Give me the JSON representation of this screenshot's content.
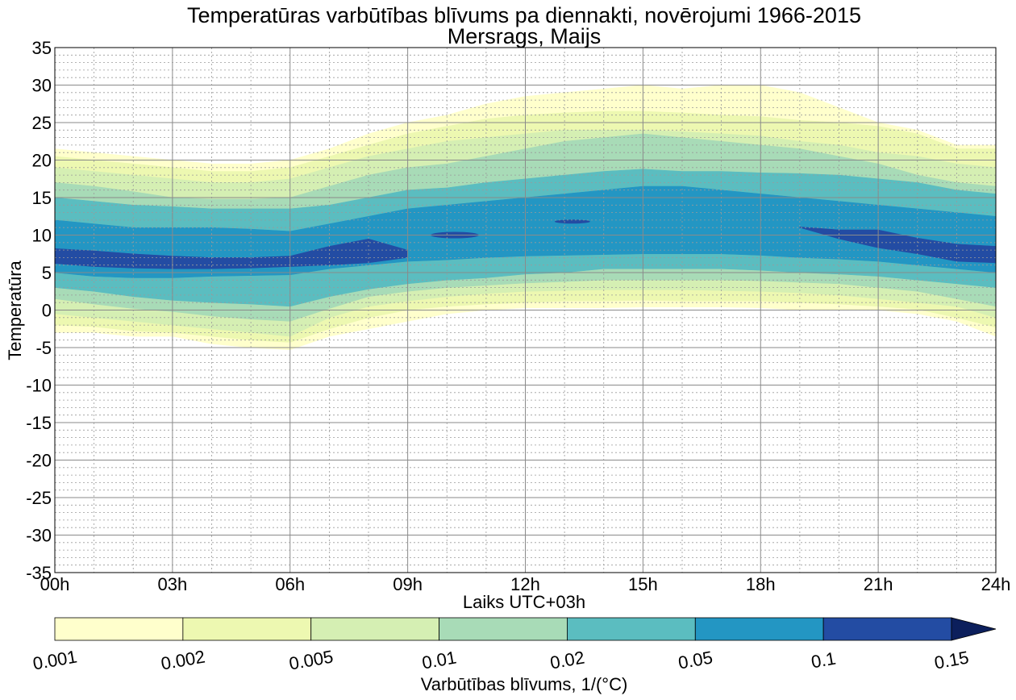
{
  "chart_data": {
    "type": "contour",
    "title": "Temperatūras varbūtības blīvums pa diennakti, novērojumi 1966-2015",
    "subtitle": "Mersrags, Maijs",
    "xlabel": "Laiks UTC+03h",
    "ylabel": "Temperatūra",
    "xlim": [
      0,
      24
    ],
    "ylim": [
      -35,
      35
    ],
    "x_ticks": [
      0,
      3,
      6,
      9,
      12,
      15,
      18,
      21,
      24
    ],
    "x_tick_labels": [
      "00h",
      "03h",
      "06h",
      "09h",
      "12h",
      "15h",
      "18h",
      "21h",
      "24h"
    ],
    "y_ticks": [
      -35,
      -30,
      -25,
      -20,
      -15,
      -10,
      -5,
      0,
      5,
      10,
      15,
      20,
      25,
      30,
      35
    ],
    "y_tick_labels": [
      "-35",
      "-30",
      "-25",
      "-20",
      "-15",
      "-10",
      "-5",
      "0",
      "5",
      "10",
      "15",
      "20",
      "25",
      "30",
      "35"
    ],
    "grid": true,
    "colorbar": {
      "label": "Varbūtības blīvums, 1/(°C)",
      "levels": [
        0.001,
        0.002,
        0.005,
        0.01,
        0.02,
        0.05,
        0.1,
        0.15
      ],
      "level_labels": [
        "0.001",
        "0.002",
        "0.005",
        "0.01",
        "0.02",
        "0.05",
        "0.1",
        "0.15"
      ],
      "colors": [
        "#ffffcc",
        "#edf8b1",
        "#d5efb3",
        "#a8dbb7",
        "#5bbdc0",
        "#2396c3",
        "#234ca3",
        "#0c1f5c"
      ],
      "extend": "max",
      "placement": "bottom"
    },
    "hours": [
      0,
      1,
      2,
      3,
      4,
      5,
      6,
      7,
      8,
      9,
      10,
      11,
      12,
      13,
      14,
      15,
      16,
      17,
      18,
      19,
      20,
      21,
      22,
      23,
      24
    ],
    "contour_bands": [
      {
        "level": 0.001,
        "upper": [
          21.5,
          21,
          20.5,
          20,
          19.5,
          19.5,
          20,
          21.5,
          23.5,
          25,
          26,
          27.5,
          28.5,
          29,
          29.5,
          30,
          29.5,
          30,
          30,
          29,
          27,
          25,
          24,
          22,
          22
        ],
        "lower": [
          -3,
          -3,
          -3.5,
          -3.5,
          -4.5,
          -5,
          -5.3,
          -3.5,
          -2.5,
          -1.5,
          -0.5,
          0,
          0.3,
          0.3,
          0.3,
          0.4,
          0.4,
          0.4,
          0.3,
          0,
          0,
          0,
          -0.5,
          -1.5,
          -3.5
        ]
      },
      {
        "level": 0.002,
        "upper": [
          20.5,
          20,
          19.5,
          19,
          18.5,
          18.5,
          19,
          20.5,
          22,
          23.5,
          24.5,
          25.5,
          26,
          26.3,
          26.5,
          26.5,
          26.3,
          26,
          25.8,
          25.3,
          25,
          24.5,
          23.5,
          21.5,
          21.5
        ],
        "lower": [
          -2,
          -2.2,
          -2.8,
          -3,
          -3.5,
          -4,
          -4.3,
          -2.5,
          -1,
          0,
          0.5,
          0.8,
          1,
          1.2,
          1.2,
          1.3,
          1.2,
          1.2,
          1.2,
          1,
          0.8,
          0.5,
          0.1,
          -1,
          -2.3
        ]
      },
      {
        "level": 0.005,
        "upper": [
          19,
          18.5,
          18,
          17.5,
          17,
          17,
          17.5,
          19,
          20.5,
          21.5,
          22.5,
          23,
          23.5,
          24,
          24,
          24,
          23.8,
          23.5,
          23.2,
          22.5,
          22,
          21,
          20.5,
          19.5,
          19
        ],
        "lower": [
          -0.5,
          -1,
          -1.5,
          -2,
          -2.5,
          -3,
          -3.5,
          -1,
          0.5,
          1.2,
          1.8,
          2.2,
          2.5,
          2.6,
          2.7,
          2.7,
          2.7,
          2.6,
          2.5,
          2.3,
          2,
          1.5,
          1,
          0.5,
          -1
        ]
      },
      {
        "level": 0.01,
        "upper": [
          17,
          16.5,
          15.8,
          15,
          14.8,
          14.8,
          15,
          16.5,
          18,
          19,
          19.5,
          20.5,
          21.5,
          22.5,
          23,
          23.5,
          23,
          22.5,
          22,
          21.5,
          20.5,
          19.5,
          18,
          17,
          16.5
        ],
        "lower": [
          1.5,
          0.8,
          0.2,
          -0.2,
          -0.8,
          -1.2,
          -1.5,
          0.2,
          1.8,
          2.5,
          3,
          3.3,
          3.6,
          3.8,
          4,
          4,
          4,
          4,
          3.9,
          3.7,
          3.5,
          3,
          2.5,
          1.5,
          0.5
        ]
      },
      {
        "level": 0.02,
        "upper": [
          15,
          14.5,
          14,
          13.8,
          13.5,
          13.5,
          13.5,
          14,
          15,
          16,
          16.3,
          17,
          17.5,
          18,
          18.5,
          18.8,
          18.5,
          18.5,
          18.3,
          18.2,
          18,
          17.5,
          17,
          16,
          15.5
        ],
        "lower": [
          3,
          2.5,
          1.8,
          1.3,
          1,
          0.8,
          0.5,
          1.8,
          2.8,
          3.5,
          4,
          4.3,
          4.8,
          5,
          5.5,
          5.5,
          5.5,
          5.5,
          5.3,
          5,
          4.8,
          4.5,
          4,
          3.5,
          3
        ]
      },
      {
        "level": 0.05,
        "upper": [
          12,
          11.5,
          11,
          11,
          11,
          10.8,
          10.5,
          11.5,
          12.5,
          13.5,
          14,
          14.5,
          15,
          15.5,
          16,
          16.5,
          16.5,
          16,
          15.5,
          15,
          14.5,
          14,
          13.5,
          13,
          12.5
        ],
        "lower": [
          5,
          4.5,
          4.3,
          4.3,
          4.5,
          4.6,
          4.7,
          5.5,
          6,
          6.5,
          6.7,
          7,
          7.2,
          7.3,
          7.4,
          7.5,
          7.5,
          7.5,
          7.3,
          7,
          6.8,
          6.5,
          6,
          5.5,
          5
        ]
      },
      {
        "level": 0.1,
        "upper": [
          8.2,
          7.9,
          7.5,
          7.2,
          7,
          7,
          7.2,
          8.5,
          9.5,
          8,
          0,
          0,
          0,
          0,
          0,
          0,
          0,
          0,
          0,
          11.1,
          10.7,
          10.7,
          9.6,
          8.8,
          8.5
        ],
        "lower": [
          6.2,
          5.8,
          5.6,
          5.5,
          5.5,
          5.6,
          5.8,
          6,
          6.3,
          7,
          0,
          0,
          0,
          0,
          0,
          0,
          0,
          0,
          0,
          11,
          9.5,
          8.3,
          7.5,
          6.5,
          6.3
        ]
      }
    ]
  }
}
